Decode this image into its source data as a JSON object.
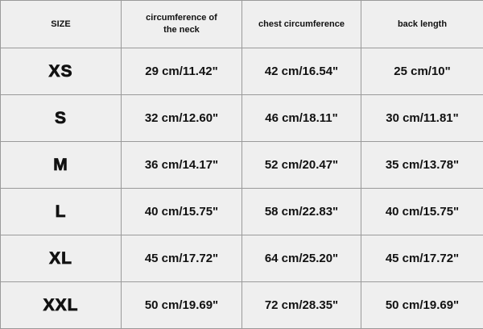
{
  "table": {
    "header": [
      "SIZE",
      "circumference of the neck",
      "chest circumference",
      "back length"
    ],
    "rows": [
      [
        "XS",
        "29 cm/11.42\"",
        "42 cm/16.54\"",
        "25 cm/10\""
      ],
      [
        "S",
        "32 cm/12.60\"",
        "46 cm/18.11\"",
        "30 cm/11.81\""
      ],
      [
        "M",
        "36 cm/14.17\"",
        "52 cm/20.47\"",
        "35 cm/13.78\""
      ],
      [
        "L",
        "40 cm/15.75\"",
        "58 cm/22.83\"",
        "40 cm/15.75\""
      ],
      [
        "XL",
        "45 cm/17.72\"",
        "64 cm/25.20\"",
        "45 cm/17.72\""
      ],
      [
        "XXL",
        "50 cm/19.69\"",
        "72 cm/28.35\"",
        "50 cm/19.69\""
      ]
    ]
  }
}
